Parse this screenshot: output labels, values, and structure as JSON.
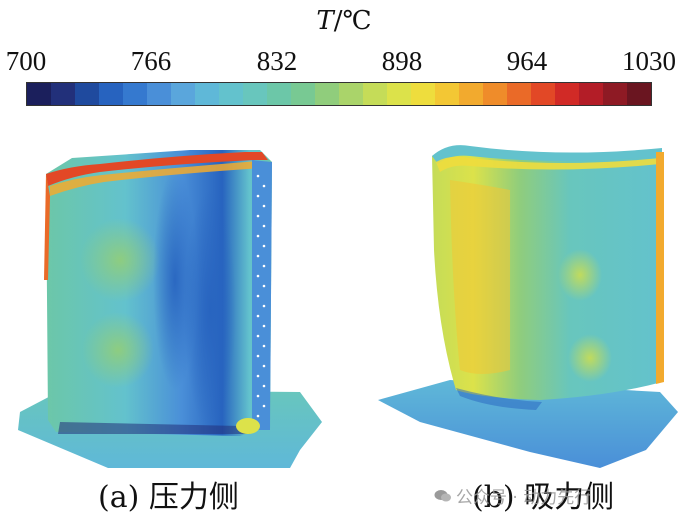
{
  "colorbar": {
    "quantity_symbol": "T",
    "unit": "/℃",
    "ticks": [
      "700",
      "766",
      "832",
      "898",
      "964",
      "1030"
    ],
    "range": [
      700,
      1030
    ],
    "colormap": [
      "#1b1f5c",
      "#22307a",
      "#1f4a9e",
      "#2763bf",
      "#3579cf",
      "#4a8fd8",
      "#5aa6dc",
      "#5fb8d8",
      "#63c2cd",
      "#68c6bd",
      "#6cc7a8",
      "#78c993",
      "#90cd7c",
      "#aad46a",
      "#c5dc58",
      "#dce24a",
      "#eedd3d",
      "#f3c734",
      "#f2aa2e",
      "#ef8c2a",
      "#ea6a28",
      "#e24826",
      "#d12a26",
      "#b31d27",
      "#8e1a24",
      "#6a1520"
    ]
  },
  "figures": [
    {
      "caption": "(a) 压力侧",
      "colors": {
        "base": "#6cc7a8",
        "edge": "#e24826",
        "cold": "#2763bf",
        "warm": "#90cd7c"
      }
    },
    {
      "caption": "(b) 吸力侧",
      "colors": {
        "base": "#6cc7a8",
        "hot": "#eedd3d",
        "cold": "#3579cf"
      }
    }
  ],
  "watermark": {
    "icon": "wechat-icon",
    "text": "公众号 · 动力先行"
  }
}
